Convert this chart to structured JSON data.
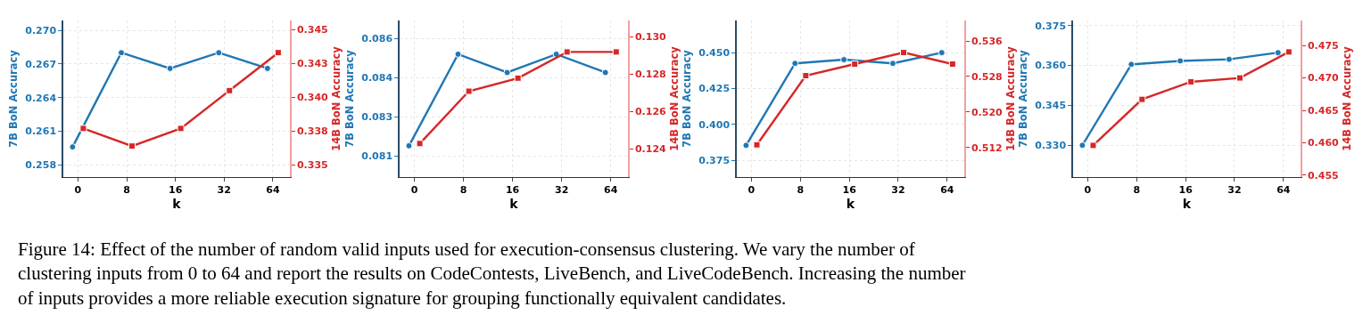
{
  "chart_data": [
    {
      "type": "line",
      "categories": [
        "0",
        "8",
        "16",
        "32",
        "64"
      ],
      "xlabel": "k",
      "ylabel": "7B BoN Accuracy",
      "y2label": "14B BoN Accuracy",
      "grid": true,
      "ylim": [
        0.2569,
        0.2709
      ],
      "yticks": [
        0.258,
        0.261,
        0.264,
        0.267,
        {
          "value": 0.27,
          "label": "0.270"
        }
      ],
      "y2lim": [
        0.3341,
        0.3457
      ],
      "y2ticks": [
        0.335,
        {
          "value": 0.3375,
          "label": "0.338"
        },
        {
          "value": 0.34,
          "label": "0.340"
        },
        {
          "value": 0.3425,
          "label": "0.343"
        },
        0.345
      ],
      "series": [
        {
          "color": "#1f77b4",
          "marker": "circle",
          "values": [
            0.2596,
            0.268,
            0.2666,
            0.268,
            0.2666
          ]
        },
        {
          "color": "#d62728",
          "marker": "square",
          "axis": "y2",
          "values": [
            0.3377,
            0.3364,
            0.3377,
            0.3405,
            0.3433
          ]
        }
      ],
      "annotations": [
        "Figure 14: Effect of the number of random valid inputs used for execution-consensus clustering. We vary the number of clustering inputs from 0 to 64 and report the results on CodeContests, LiveBench, and LiveCodeBench. Increasing the number of inputs provides a more reliable execution signature for grouping functionally equivalent candidates."
      ]
    },
    {
      "type": "line",
      "categories": [
        "0",
        "8",
        "16",
        "32",
        "64"
      ],
      "xlabel": "k",
      "ylabel": "7B BoN Accuracy",
      "y2label": "14B BoN Accuracy",
      "grid": true,
      "ylim": [
        0.0807,
        0.0867
      ],
      "yticks": [
        {
          "value": 0.0815,
          "label": "0.081"
        },
        0.083,
        {
          "value": 0.0845,
          "label": "0.084"
        },
        0.086
      ],
      "y2lim": [
        0.1225,
        0.1309
      ],
      "y2ticks": [
        0.124,
        0.126,
        0.128,
        {
          "value": 0.13,
          "label": "0.130"
        }
      ],
      "series": [
        {
          "color": "#1f77b4",
          "marker": "circle",
          "values": [
            0.0819,
            0.0854,
            0.0847,
            0.0854,
            0.0847
          ]
        },
        {
          "color": "#d62728",
          "marker": "square",
          "axis": "y2",
          "values": [
            0.1243,
            0.1271,
            0.1278,
            0.1292,
            0.1292
          ]
        }
      ]
    },
    {
      "type": "line",
      "categories": [
        "0",
        "8",
        "16",
        "32",
        "64"
      ],
      "xlabel": "k",
      "ylabel": "7B BoN Accuracy",
      "y2label": "14B BoN Accuracy",
      "grid": true,
      "ylim": [
        0.3632,
        0.4726
      ],
      "yticks": [
        0.375,
        {
          "value": 0.4,
          "label": "0.400"
        },
        0.425,
        {
          "value": 0.45,
          "label": "0.450"
        }
      ],
      "y2lim": [
        0.5053,
        0.5407
      ],
      "y2ticks": [
        0.512,
        {
          "value": 0.52,
          "label": "0.520"
        },
        0.528,
        0.536
      ],
      "series": [
        {
          "color": "#1f77b4",
          "marker": "circle",
          "values": [
            0.3854,
            0.4425,
            0.4451,
            0.4425,
            0.45
          ]
        },
        {
          "color": "#d62728",
          "marker": "square",
          "axis": "y2",
          "values": [
            0.5126,
            0.5282,
            0.5308,
            0.5334,
            0.5308
          ]
        }
      ]
    },
    {
      "type": "line",
      "categories": [
        "0",
        "8",
        "16",
        "32",
        "64"
      ],
      "xlabel": "k",
      "ylabel": "7B BoN Accuracy",
      "y2label": "14B BoN Accuracy",
      "grid": true,
      "ylim": [
        0.318,
        0.377
      ],
      "yticks": [
        {
          "value": 0.33,
          "label": "0.330"
        },
        0.345,
        {
          "value": 0.36,
          "label": "0.360"
        },
        0.375
      ],
      "y2lim": [
        0.4547,
        0.4789
      ],
      "y2ticks": [
        0.455,
        {
          "value": 0.46,
          "label": "0.460"
        },
        0.465,
        {
          "value": 0.47,
          "label": "0.470"
        },
        0.475
      ],
      "series": [
        {
          "color": "#1f77b4",
          "marker": "circle",
          "values": [
            0.33,
            0.3604,
            0.3617,
            0.3623,
            0.3648
          ]
        },
        {
          "color": "#d62728",
          "marker": "square",
          "axis": "y2",
          "values": [
            0.4596,
            0.4667,
            0.4694,
            0.47,
            0.474
          ]
        }
      ]
    }
  ]
}
